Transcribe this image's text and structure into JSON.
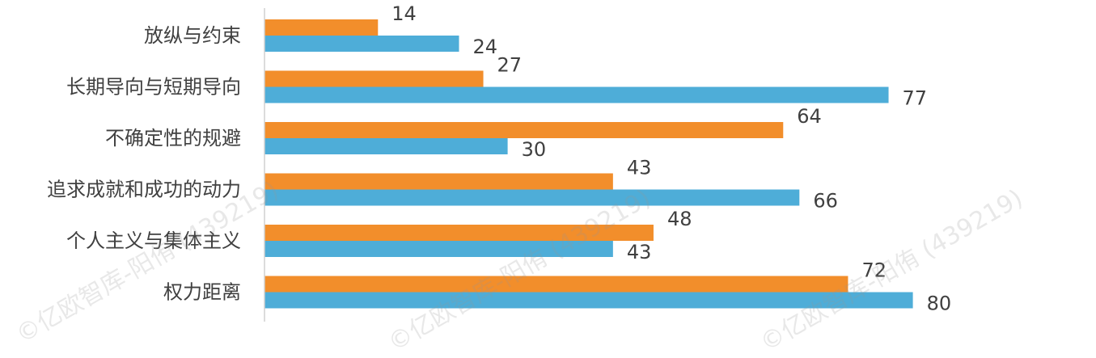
{
  "chart_data": {
    "type": "bar",
    "orientation": "horizontal",
    "categories": [
      "放纵与约束",
      "长期导向与短期导向",
      "不确定性的规避",
      "追求成就和成功的动力",
      "个人主义与集体主义",
      "权力距离"
    ],
    "series": [
      {
        "color": "#F28E2B",
        "values": [
          14,
          27,
          64,
          43,
          48,
          72
        ]
      },
      {
        "color": "#4EADD8",
        "values": [
          24,
          77,
          30,
          66,
          43,
          80
        ]
      }
    ],
    "xlim": [
      0,
      100
    ],
    "grid": false,
    "legend": "none",
    "data_labels": true
  },
  "watermarks": [
    "©亿欧智库-阳侑 (439219)",
    "©亿欧智库-阳侑 (439219)",
    "©亿欧智库-阳侑 (439219)"
  ]
}
